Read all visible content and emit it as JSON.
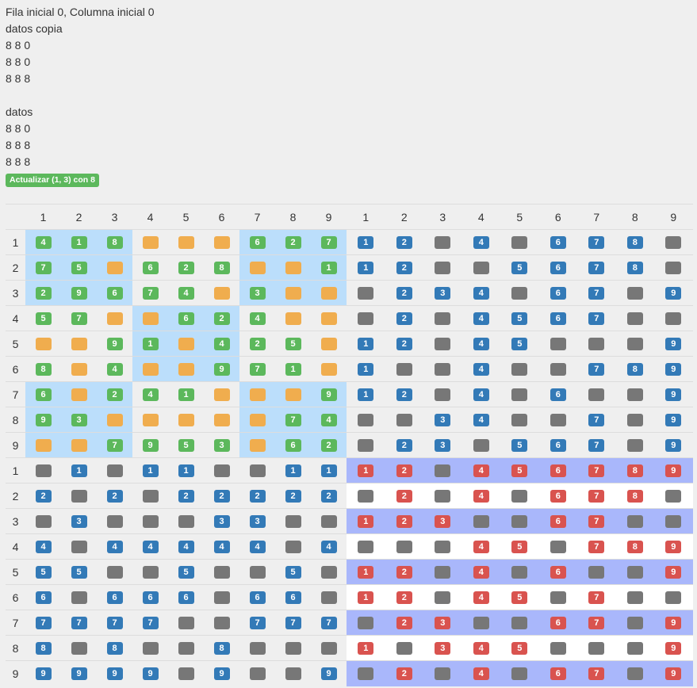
{
  "info": {
    "header": "Fila inicial 0, Columna inicial 0",
    "copy_title": "datos copia",
    "copy_rows": [
      "8 8 0",
      "8 8 0",
      "8 8 8"
    ],
    "data_title": "datos",
    "data_rows": [
      "8 8 0",
      "8 8 8",
      "8 8 8"
    ],
    "update_button_label": "Actualizar (1, 3) con 8"
  },
  "board": {
    "colors": {
      "orange": "#f0ad4e",
      "green": "#5cb85c",
      "blue": "#337ab7",
      "red": "#d9534f",
      "gray": "#777777",
      "highlight": "#bbdefb",
      "lavender": "#a9b7fb"
    },
    "col_headers": [
      "1",
      "2",
      "3",
      "4",
      "5",
      "6",
      "7",
      "8",
      "9",
      "1",
      "2",
      "3",
      "4",
      "5",
      "6",
      "7",
      "8",
      "9"
    ],
    "row_headers": [
      "1",
      "2",
      "3",
      "4",
      "5",
      "6",
      "7",
      "8",
      "9",
      "1",
      "2",
      "3",
      "4",
      "5",
      "6",
      "7",
      "8",
      "9"
    ],
    "sudoku": [
      [
        "4",
        "1",
        "8",
        "",
        "",
        "",
        "6",
        "2",
        "7"
      ],
      [
        "7",
        "5",
        "",
        "6",
        "2",
        "8",
        "",
        "",
        "1"
      ],
      [
        "2",
        "9",
        "6",
        "7",
        "4",
        "",
        "3",
        "",
        ""
      ],
      [
        "5",
        "7",
        "",
        "",
        "6",
        "2",
        "4",
        "",
        ""
      ],
      [
        "",
        "",
        "9",
        "1",
        "",
        "4",
        "2",
        "5",
        ""
      ],
      [
        "8",
        "",
        "4",
        "",
        "",
        "9",
        "7",
        "1",
        ""
      ],
      [
        "6",
        "",
        "2",
        "4",
        "1",
        "",
        "",
        "",
        "9"
      ],
      [
        "9",
        "3",
        "",
        "",
        "",
        "",
        "",
        "7",
        "4"
      ],
      [
        "",
        "",
        "7",
        "9",
        "5",
        "3",
        "",
        "6",
        "2"
      ]
    ],
    "highlight_rows": [
      [
        1,
        1,
        1,
        0,
        0,
        0,
        1,
        1,
        1
      ],
      [
        1,
        1,
        1,
        0,
        0,
        0,
        1,
        1,
        1
      ],
      [
        1,
        1,
        1,
        0,
        0,
        0,
        1,
        1,
        1
      ],
      [
        0,
        0,
        0,
        1,
        1,
        1,
        0,
        0,
        0
      ],
      [
        0,
        0,
        0,
        1,
        1,
        1,
        0,
        0,
        0
      ],
      [
        0,
        0,
        0,
        1,
        1,
        1,
        0,
        0,
        0
      ],
      [
        1,
        1,
        1,
        0,
        0,
        0,
        1,
        1,
        1
      ],
      [
        1,
        1,
        1,
        0,
        0,
        0,
        1,
        1,
        1
      ],
      [
        1,
        1,
        1,
        0,
        0,
        0,
        1,
        1,
        1
      ]
    ],
    "col_candidates": [
      [
        "1",
        "2",
        "",
        "4",
        "",
        "6",
        "7",
        "8",
        ""
      ],
      [
        "1",
        "2",
        "",
        "",
        "5",
        "6",
        "7",
        "8",
        ""
      ],
      [
        "",
        "2",
        "3",
        "4",
        "",
        "6",
        "7",
        "",
        "9"
      ],
      [
        "",
        "2",
        "",
        "4",
        "5",
        "6",
        "7",
        "",
        ""
      ],
      [
        "1",
        "2",
        "",
        "4",
        "5",
        "",
        "",
        "",
        "9"
      ],
      [
        "1",
        "",
        "",
        "4",
        "",
        "",
        "7",
        "8",
        "9"
      ],
      [
        "1",
        "2",
        "",
        "4",
        "",
        "6",
        "",
        "",
        "9"
      ],
      [
        "",
        "",
        "3",
        "4",
        "",
        "",
        "7",
        "",
        "9"
      ],
      [
        "",
        "2",
        "3",
        "",
        "5",
        "6",
        "7",
        "",
        "9"
      ]
    ],
    "row_candidates": [
      [
        "",
        "1",
        "",
        "1",
        "1",
        "",
        "",
        "1",
        "1"
      ],
      [
        "2",
        "",
        "2",
        "",
        "2",
        "2",
        "2",
        "2",
        "2"
      ],
      [
        "",
        "3",
        "",
        "",
        "",
        "3",
        "3",
        "",
        ""
      ],
      [
        "4",
        "",
        "4",
        "4",
        "4",
        "4",
        "4",
        "",
        "4"
      ],
      [
        "5",
        "5",
        "",
        "",
        "5",
        "",
        "",
        "5",
        ""
      ],
      [
        "6",
        "",
        "6",
        "6",
        "6",
        "",
        "6",
        "6",
        ""
      ],
      [
        "7",
        "7",
        "7",
        "7",
        "",
        "",
        "7",
        "7",
        "7"
      ],
      [
        "8",
        "",
        "8",
        "",
        "",
        "8",
        "",
        "",
        ""
      ],
      [
        "9",
        "9",
        "9",
        "9",
        "",
        "9",
        "",
        "",
        "9"
      ]
    ],
    "box_candidates": [
      [
        "1",
        "2",
        "",
        "4",
        "5",
        "6",
        "7",
        "8",
        "9"
      ],
      [
        "",
        "2",
        "",
        "4",
        "",
        "6",
        "7",
        "8",
        ""
      ],
      [
        "1",
        "2",
        "3",
        "",
        "",
        "6",
        "7",
        "",
        ""
      ],
      [
        "",
        "",
        "",
        "4",
        "5",
        "",
        "7",
        "8",
        "9"
      ],
      [
        "1",
        "2",
        "",
        "4",
        "",
        "6",
        "",
        "",
        "9"
      ],
      [
        "1",
        "2",
        "",
        "4",
        "5",
        "",
        "7",
        "",
        ""
      ],
      [
        "",
        "2",
        "3",
        "",
        "",
        "6",
        "7",
        "",
        "9"
      ],
      [
        "1",
        "",
        "3",
        "4",
        "5",
        "",
        "",
        "",
        "9"
      ],
      [
        "",
        "2",
        "",
        "4",
        "",
        "6",
        "7",
        "",
        "9"
      ]
    ],
    "box_row_styles": [
      "lav",
      "white",
      "lav",
      "white",
      "lav",
      "white",
      "lav",
      "white",
      "lav"
    ]
  }
}
